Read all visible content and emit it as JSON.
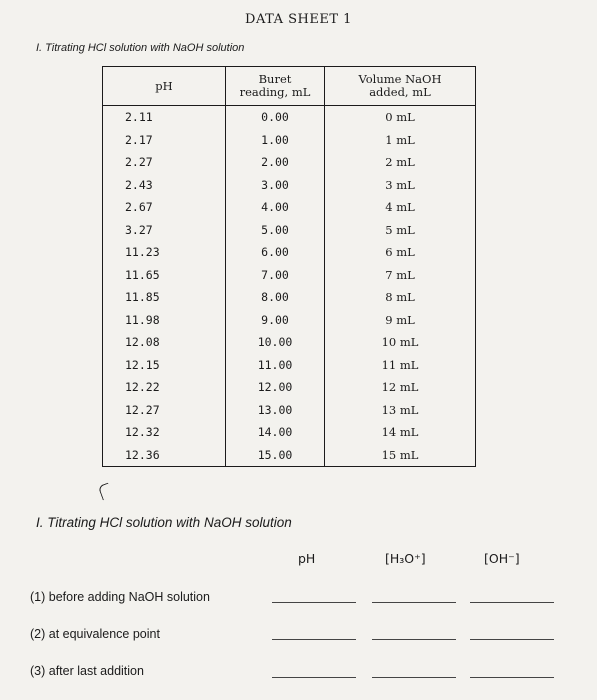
{
  "title": "DATA SHEET 1",
  "section_title": "I. Titrating HCl solution with NaOH solution",
  "table": {
    "headers": {
      "ph": "pH",
      "buret": [
        "Buret",
        "reading, mL"
      ],
      "volume": [
        "Volume NaOH",
        "added, mL"
      ]
    },
    "rows": [
      {
        "ph": "2.11",
        "buret": "0.00",
        "volume": "0 mL"
      },
      {
        "ph": "2.17",
        "buret": "1.00",
        "volume": "1 mL"
      },
      {
        "ph": "2.27",
        "buret": "2.00",
        "volume": "2 mL"
      },
      {
        "ph": "2.43",
        "buret": "3.00",
        "volume": "3 mL"
      },
      {
        "ph": "2.67",
        "buret": "4.00",
        "volume": "4 mL"
      },
      {
        "ph": "3.27",
        "buret": "5.00",
        "volume": "5 mL"
      },
      {
        "ph": "11.23",
        "buret": "6.00",
        "volume": "6 mL"
      },
      {
        "ph": "11.65",
        "buret": "7.00",
        "volume": "7 mL"
      },
      {
        "ph": "11.85",
        "buret": "8.00",
        "volume": "8 mL"
      },
      {
        "ph": "11.98",
        "buret": "9.00",
        "volume": "9 mL"
      },
      {
        "ph": "12.08",
        "buret": "10.00",
        "volume": "10 mL"
      },
      {
        "ph": "12.15",
        "buret": "11.00",
        "volume": "11 mL"
      },
      {
        "ph": "12.22",
        "buret": "12.00",
        "volume": "12 mL"
      },
      {
        "ph": "12.27",
        "buret": "13.00",
        "volume": "13 mL"
      },
      {
        "ph": "12.32",
        "buret": "14.00",
        "volume": "14 mL"
      },
      {
        "ph": "12.36",
        "buret": "15.00",
        "volume": "15 mL"
      }
    ]
  },
  "section2_title": "I. Titrating HCl solution with NaOH solution",
  "summary": {
    "columns": [
      "pH",
      "[H₃O⁺]",
      "[OH⁻]"
    ],
    "questions": [
      "(1) before adding NaOH solution",
      "(2) at equivalence point",
      "(3) after last addition"
    ]
  }
}
